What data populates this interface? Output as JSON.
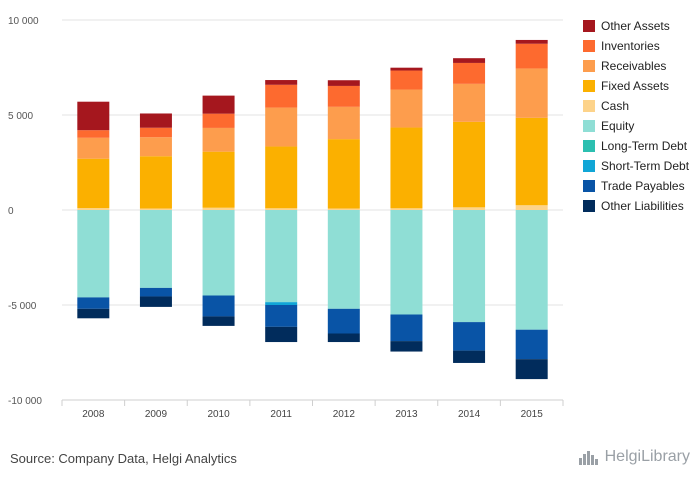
{
  "chart_data": {
    "type": "bar",
    "stacked": true,
    "categories": [
      "2008",
      "2009",
      "2010",
      "2011",
      "2012",
      "2013",
      "2014",
      "2015"
    ],
    "ylim": [
      -10000,
      10000
    ],
    "yticks": [
      10000,
      5000,
      0,
      -5000,
      -10000
    ],
    "ytick_labels": [
      "10 000",
      "5 000",
      "0",
      "-5 000",
      "-10 000"
    ],
    "grid": true,
    "legend_position": "right",
    "assets": [
      {
        "name": "Cash",
        "color": "#fdd38a",
        "values": [
          100,
          80,
          120,
          90,
          80,
          90,
          140,
          250
        ]
      },
      {
        "name": "Fixed Assets",
        "color": "#fbb000",
        "values": [
          2600,
          2750,
          2950,
          3250,
          3650,
          4250,
          4500,
          4600
        ]
      },
      {
        "name": "Receivables",
        "color": "#fd9d4d",
        "values": [
          1100,
          1000,
          1250,
          2050,
          1700,
          2000,
          2000,
          2600
        ]
      },
      {
        "name": "Inventories",
        "color": "#fd6a2f",
        "values": [
          400,
          500,
          750,
          1200,
          1100,
          1000,
          1100,
          1300
        ]
      },
      {
        "name": "Other Assets",
        "color": "#a5171e",
        "values": [
          1500,
          750,
          950,
          250,
          300,
          150,
          250,
          200
        ]
      }
    ],
    "liabilities": [
      {
        "name": "Equity",
        "color": "#8fded5",
        "values": [
          -4600,
          -4100,
          -4500,
          -4850,
          -5200,
          -5500,
          -5900,
          -6300
        ]
      },
      {
        "name": "Long-Term Debt",
        "color": "#2cbfb0",
        "values": [
          0,
          0,
          0,
          0,
          0,
          0,
          0,
          0
        ]
      },
      {
        "name": "Short-Term Debt",
        "color": "#11a6d6",
        "values": [
          0,
          0,
          0,
          -150,
          0,
          0,
          0,
          0
        ]
      },
      {
        "name": "Trade Payables",
        "color": "#0954a6",
        "values": [
          -600,
          -450,
          -1100,
          -1150,
          -1300,
          -1400,
          -1500,
          -1550
        ]
      },
      {
        "name": "Other Liabilities",
        "color": "#012c5c",
        "values": [
          -500,
          -550,
          -500,
          -800,
          -450,
          -550,
          -650,
          -1050
        ]
      }
    ]
  },
  "legend": [
    {
      "label": "Other Assets",
      "color": "#a5171e"
    },
    {
      "label": "Inventories",
      "color": "#fd6a2f"
    },
    {
      "label": "Receivables",
      "color": "#fd9d4d"
    },
    {
      "label": "Fixed Assets",
      "color": "#fbb000"
    },
    {
      "label": "Cash",
      "color": "#fdd38a"
    },
    {
      "label": "Equity",
      "color": "#8fded5"
    },
    {
      "label": "Long-Term Debt",
      "color": "#2cbfb0"
    },
    {
      "label": "Short-Term Debt",
      "color": "#11a6d6"
    },
    {
      "label": "Trade Payables",
      "color": "#0954a6"
    },
    {
      "label": "Other Liabilities",
      "color": "#012c5c"
    }
  ],
  "footer": {
    "source": "Source: Company Data, Helgi Analytics",
    "logo_text": "HelgiLibrary"
  }
}
